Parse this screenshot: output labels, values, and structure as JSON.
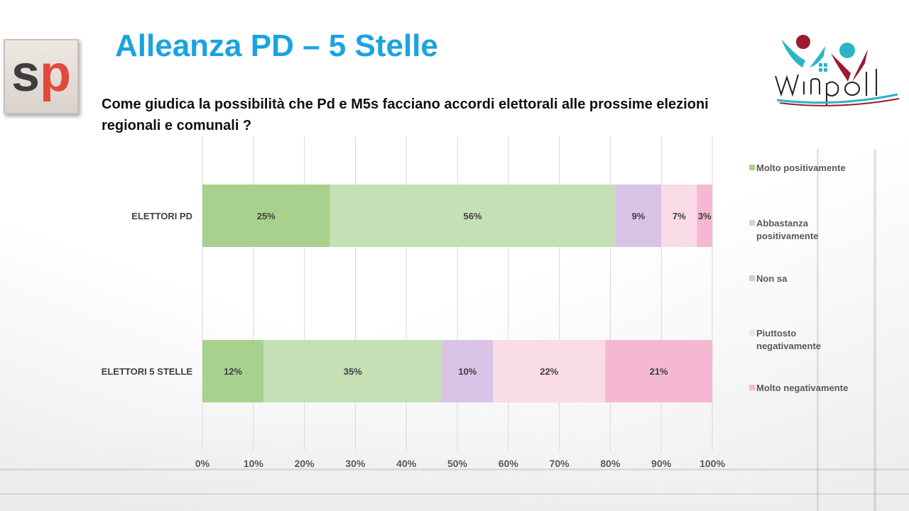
{
  "header": {
    "title": "Alleanza PD – 5 Stelle",
    "question": "Come giudica la possibilità che Pd e M5s facciano accordi elettorali alle prossime elezioni  regionali e comunali ?"
  },
  "logos": {
    "left": {
      "letter_1": "s",
      "letter_2": "p",
      "colors": {
        "s": "#3d3d3d",
        "p": "#e04a3c"
      }
    },
    "right": {
      "name": "winpoll",
      "colors": {
        "teal": "#2bb5c4",
        "maroon": "#9b1b30"
      }
    }
  },
  "chart_data": {
    "type": "bar",
    "orientation": "horizontal",
    "stacked": "percent",
    "categories": [
      "ELETTORI PD",
      "ELETTORI 5 STELLE"
    ],
    "series": [
      {
        "name": "Molto positivamente",
        "color": "#a9d18e",
        "values": [
          25,
          12
        ],
        "labels": [
          "25%",
          "12%"
        ]
      },
      {
        "name": "Abbastanza positivamente",
        "color": "#c5e0b4",
        "values": [
          56,
          35
        ],
        "labels": [
          "56%",
          "35%"
        ]
      },
      {
        "name": "Non sa",
        "color": "#d9c3e6",
        "values": [
          9,
          10
        ],
        "labels": [
          "9%",
          "10%"
        ]
      },
      {
        "name": "Piuttosto negativamente",
        "color": "#fadbe8",
        "values": [
          7,
          22
        ],
        "labels": [
          "7%",
          "22%"
        ]
      },
      {
        "name": "Molto negativamente",
        "color": "#f4b8d2",
        "values": [
          3,
          21
        ],
        "labels": [
          "3%",
          "21%"
        ]
      }
    ],
    "xlim": [
      0,
      100
    ],
    "x_ticks": [
      "0%",
      "10%",
      "20%",
      "30%",
      "40%",
      "50%",
      "60%",
      "70%",
      "80%",
      "90%",
      "100%"
    ],
    "grid": true,
    "legend_position": "right"
  }
}
